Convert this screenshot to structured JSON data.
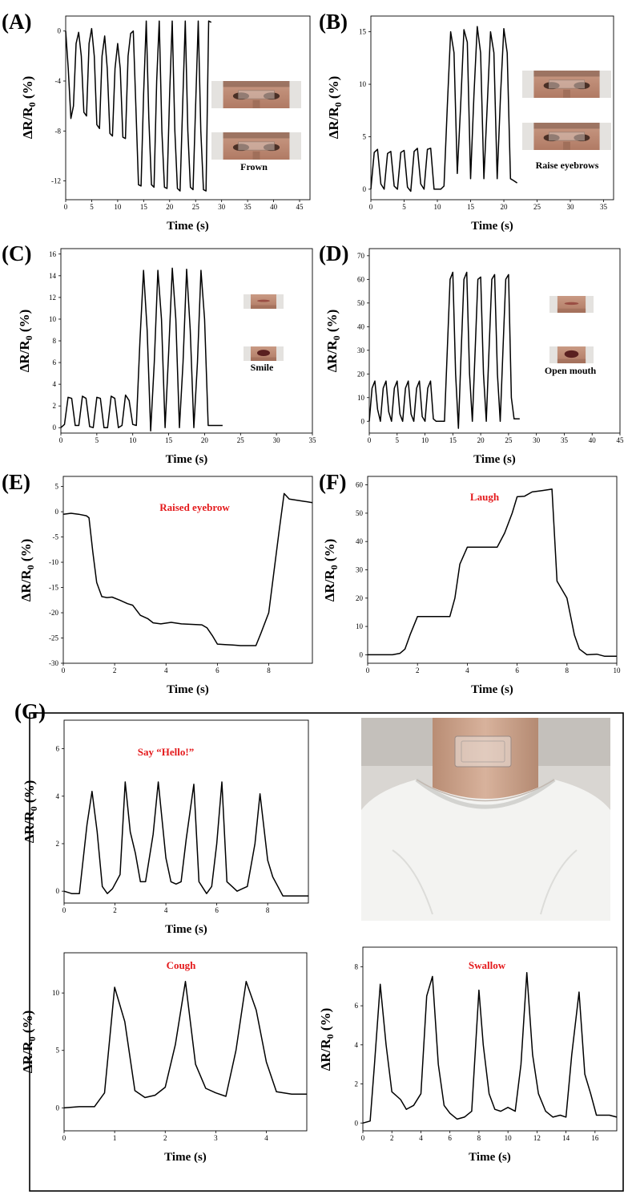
{
  "colors": {
    "line": "#000000",
    "annotation_red": "#e41a1c"
  },
  "photos": {
    "face_eyes": "face-eyes-photo",
    "face_mouth": "face-mouth-photo",
    "neck": "neck-sensor-photo"
  },
  "chart_data": [
    {
      "id": "A",
      "letter": "(A)",
      "type": "line",
      "ylabel": "ΔR/R0 (%)",
      "xlabel": "Time (s)",
      "xlim": [
        0,
        47
      ],
      "ylim": [
        -13.5,
        1.2
      ],
      "xticks": [
        0,
        5,
        10,
        15,
        20,
        25,
        30,
        35,
        40,
        45
      ],
      "yticks": [
        0,
        -4,
        -8,
        -12
      ],
      "annotation": "Frown",
      "annotation_color": "black",
      "insets": [
        "face_eyes",
        "face_eyes"
      ],
      "series": [
        {
          "x": [
            0,
            0.5,
            1,
            1.5,
            2,
            2.5,
            3,
            3.5,
            4,
            4.5,
            5,
            5.5,
            6,
            6.5,
            7,
            7.5,
            8,
            8.5,
            9,
            9.5,
            10,
            10.5,
            11,
            11.5,
            12,
            12.5,
            13,
            13.5,
            14,
            14.5,
            15,
            15.5,
            16,
            16.5,
            17,
            17.5,
            18,
            18.5,
            19,
            19.5,
            20,
            20.5,
            21,
            21.5,
            22,
            22.5,
            23,
            23.5,
            24,
            24.5,
            25,
            25.5,
            26,
            26.5,
            27,
            27.5,
            28
          ],
          "y": [
            0,
            -3,
            -7,
            -6,
            -1,
            -0.1,
            -2,
            -6.5,
            -6.8,
            -1,
            0.2,
            -2,
            -7.5,
            -7.8,
            -2,
            -0.4,
            -3,
            -8.2,
            -8.4,
            -3,
            -1,
            -3,
            -8.5,
            -8.6,
            -2,
            -0.2,
            0,
            -6,
            -12.3,
            -12.4,
            -5,
            0.8,
            -7,
            -12.3,
            -12.5,
            -4,
            0.8,
            -8,
            -12.5,
            -12.6,
            -5,
            0.8,
            -8,
            -12.6,
            -12.8,
            -6,
            0.8,
            -8,
            -12.5,
            -12.7,
            -6,
            0.8,
            -8,
            -12.7,
            -12.8,
            0.8,
            0.7
          ]
        }
      ]
    },
    {
      "id": "B",
      "letter": "(B)",
      "type": "line",
      "ylabel": "ΔR/R0 (%)",
      "xlabel": "Time (s)",
      "xlim": [
        0,
        36.5
      ],
      "ylim": [
        -1,
        16.5
      ],
      "xticks": [
        0,
        5,
        10,
        15,
        20,
        25,
        30,
        35
      ],
      "yticks": [
        0,
        5,
        10,
        15
      ],
      "annotation": "Raise eyebrows",
      "annotation_color": "black",
      "insets": [
        "face_eyes",
        "face_eyes"
      ],
      "series": [
        {
          "x": [
            0,
            0.5,
            1,
            1.5,
            2,
            2.5,
            3,
            3.5,
            4,
            4.5,
            5,
            5.5,
            6,
            6.5,
            7,
            7.5,
            8,
            8.5,
            9,
            9.5,
            10,
            10.5,
            11,
            11.5,
            12,
            12.5,
            13,
            13.5,
            14,
            14.5,
            15,
            15.5,
            16,
            16.5,
            17,
            17.5,
            18,
            18.5,
            19,
            19.5,
            20,
            20.5,
            21,
            21.5,
            22
          ],
          "y": [
            0,
            3.5,
            3.8,
            0.5,
            0,
            3.4,
            3.6,
            0.3,
            0,
            3.5,
            3.7,
            0.2,
            -0.2,
            3.6,
            3.9,
            0.5,
            0,
            3.8,
            3.9,
            0,
            0,
            0,
            0.3,
            8,
            15,
            13,
            1.5,
            8,
            15.2,
            14,
            1,
            9,
            15.5,
            13,
            1,
            8,
            15,
            13,
            1,
            9,
            15.3,
            13,
            1,
            0.8,
            0.6
          ]
        }
      ]
    },
    {
      "id": "C",
      "letter": "(C)",
      "type": "line",
      "ylabel": "ΔR/R0 (%)",
      "xlabel": "Time (s)",
      "xlim": [
        0,
        35
      ],
      "ylim": [
        -0.5,
        16.5
      ],
      "xticks": [
        0,
        5,
        10,
        15,
        20,
        25,
        30,
        35
      ],
      "yticks": [
        0,
        2,
        4,
        6,
        8,
        10,
        12,
        14,
        16
      ],
      "annotation": "Smile",
      "annotation_color": "black",
      "insets": [
        "face_mouth",
        "face_mouth"
      ],
      "series": [
        {
          "x": [
            0,
            0.5,
            1,
            1.5,
            2,
            2.5,
            3,
            3.5,
            4,
            4.5,
            5,
            5.5,
            6,
            6.5,
            7,
            7.5,
            8,
            8.5,
            9,
            9.5,
            10,
            10.5,
            11,
            11.5,
            12,
            12.5,
            13,
            13.5,
            14,
            14.5,
            15,
            15.5,
            16,
            16.5,
            17,
            17.5,
            18,
            18.5,
            19,
            19.5,
            20,
            20.5,
            21,
            21.5,
            22,
            22.5
          ],
          "y": [
            0,
            0.3,
            2.8,
            2.7,
            0.2,
            0.2,
            2.9,
            2.7,
            0.1,
            0,
            2.8,
            2.7,
            0,
            0,
            2.9,
            2.7,
            0,
            0.2,
            3,
            2.5,
            0.3,
            0.2,
            8,
            14.5,
            9,
            -0.3,
            6,
            14.5,
            10,
            0,
            7,
            14.7,
            10,
            0,
            6,
            14.6,
            9,
            0,
            6,
            14.5,
            10,
            0.2,
            0.2,
            0.2,
            0.2,
            0.2
          ]
        }
      ]
    },
    {
      "id": "D",
      "letter": "(D)",
      "type": "line",
      "ylabel": "ΔR/R0 (%)",
      "xlabel": "Time (s)",
      "xlim": [
        0,
        45
      ],
      "ylim": [
        -5,
        73
      ],
      "xticks": [
        0,
        5,
        10,
        15,
        20,
        25,
        30,
        35,
        40,
        45
      ],
      "yticks": [
        0,
        10,
        20,
        30,
        40,
        50,
        60,
        70
      ],
      "annotation": "Open mouth",
      "annotation_color": "black",
      "insets": [
        "face_mouth",
        "face_mouth"
      ],
      "series": [
        {
          "x": [
            0,
            0.5,
            1,
            1.5,
            2,
            2.5,
            3,
            3.5,
            4,
            4.5,
            5,
            5.5,
            6,
            6.5,
            7,
            7.5,
            8,
            8.5,
            9,
            9.5,
            10,
            10.5,
            11,
            11.5,
            12,
            12.5,
            13,
            13.5,
            14,
            14.5,
            15,
            15.5,
            16,
            16.5,
            17,
            17.5,
            18,
            18.5,
            19,
            19.5,
            20,
            20.5,
            21,
            21.5,
            22,
            22.5,
            23,
            23.5,
            24,
            24.5,
            25,
            25.5,
            26,
            26.5,
            27
          ],
          "y": [
            0,
            14,
            17,
            5,
            0,
            14,
            17,
            4,
            0,
            14,
            17,
            3,
            0,
            14,
            17,
            3,
            0,
            14,
            17,
            2,
            0,
            14,
            17,
            1,
            0,
            0,
            0,
            0,
            30,
            60,
            63,
            20,
            -3,
            30,
            60,
            63,
            20,
            0,
            30,
            60,
            61,
            20,
            0,
            30,
            60,
            62,
            20,
            0,
            30,
            60,
            62,
            10,
            1,
            1,
            1
          ]
        }
      ]
    },
    {
      "id": "E",
      "letter": "(E)",
      "type": "line",
      "ylabel": "ΔR/R0 (%)",
      "xlabel": "Time (s)",
      "xlim": [
        0,
        9.7
      ],
      "ylim": [
        -30,
        7
      ],
      "xticks": [
        0,
        2,
        4,
        6,
        8
      ],
      "yticks": [
        5,
        0,
        -5,
        -10,
        -15,
        -20,
        -25,
        -30
      ],
      "annotation": "Raised eyebrow",
      "annotation_color": "red",
      "series": [
        {
          "x": [
            0,
            0.3,
            0.6,
            0.9,
            1.0,
            1.15,
            1.3,
            1.5,
            1.7,
            1.9,
            2.2,
            2.5,
            2.7,
            3.0,
            3.3,
            3.5,
            3.8,
            4.2,
            4.6,
            5.0,
            5.4,
            5.6,
            5.8,
            6.0,
            6.3,
            6.6,
            6.9,
            7.2,
            7.5,
            7.7,
            8.0,
            8.2,
            8.4,
            8.6,
            8.8,
            9.2,
            9.7
          ],
          "y": [
            -0.5,
            -0.3,
            -0.5,
            -0.8,
            -1.2,
            -8,
            -14,
            -16.8,
            -17,
            -16.9,
            -17.5,
            -18.2,
            -18.5,
            -20.5,
            -21.2,
            -22,
            -22.2,
            -21.9,
            -22.2,
            -22.3,
            -22.4,
            -23,
            -24.5,
            -26.2,
            -26.3,
            -26.4,
            -26.5,
            -26.5,
            -26.5,
            -24,
            -20,
            -12,
            -4,
            3.6,
            2.5,
            2.2,
            1.8
          ]
        }
      ]
    },
    {
      "id": "F",
      "letter": "(F)",
      "type": "line",
      "ylabel": "ΔR/R0 (%)",
      "xlabel": "Time (s)",
      "xlim": [
        0,
        10
      ],
      "ylim": [
        -3,
        63
      ],
      "xticks": [
        0,
        2,
        4,
        6,
        8,
        10
      ],
      "yticks": [
        0,
        10,
        20,
        30,
        40,
        50,
        60
      ],
      "annotation": "Laugh",
      "annotation_color": "red",
      "series": [
        {
          "x": [
            0,
            0.5,
            1.0,
            1.3,
            1.5,
            1.7,
            2.0,
            2.5,
            3.0,
            3.3,
            3.5,
            3.7,
            4.0,
            4.5,
            5.0,
            5.2,
            5.5,
            5.8,
            6.0,
            6.3,
            6.6,
            7.0,
            7.4,
            7.6,
            8.0,
            8.3,
            8.5,
            8.8,
            9.2,
            9.5,
            10
          ],
          "y": [
            0,
            0,
            0,
            0.5,
            2,
            7,
            13.5,
            13.5,
            13.5,
            13.5,
            20,
            32,
            38,
            38,
            38,
            38,
            43,
            50,
            55.8,
            56,
            57.5,
            58,
            58.5,
            26,
            20,
            7,
            2,
            0,
            0.2,
            -0.5,
            -0.5
          ]
        }
      ]
    },
    {
      "id": "G1",
      "letter": "(G)",
      "type": "line",
      "ylabel": "ΔR/R0 (%)",
      "xlabel": "Time (s)",
      "xlim": [
        0,
        9.6
      ],
      "ylim": [
        -0.5,
        7.2
      ],
      "xticks": [
        0,
        2,
        4,
        6,
        8
      ],
      "yticks": [
        0,
        2,
        4,
        6
      ],
      "annotation": "Say “Hello!”",
      "annotation_color": "red",
      "series": [
        {
          "x": [
            0,
            0.3,
            0.6,
            0.9,
            1.1,
            1.3,
            1.5,
            1.7,
            1.9,
            2.2,
            2.4,
            2.6,
            2.8,
            3.0,
            3.2,
            3.5,
            3.7,
            4.0,
            4.2,
            4.4,
            4.6,
            4.8,
            5.1,
            5.3,
            5.6,
            5.8,
            6.0,
            6.2,
            6.4,
            6.6,
            6.8,
            7.0,
            7.2,
            7.5,
            7.7,
            8.0,
            8.2,
            8.4,
            8.6,
            8.8,
            9.0,
            9.3,
            9.6
          ],
          "y": [
            0,
            -0.1,
            -0.1,
            2.8,
            4.2,
            2.5,
            0.2,
            -0.1,
            0.1,
            0.7,
            4.6,
            2.5,
            1.6,
            0.4,
            0.4,
            2.4,
            4.6,
            1.4,
            0.4,
            0.3,
            0.4,
            2.2,
            4.5,
            0.4,
            -0.1,
            0.2,
            2.0,
            4.6,
            0.4,
            0.2,
            0,
            0.1,
            0.2,
            2.0,
            4.1,
            1.3,
            0.6,
            0.2,
            -0.2,
            -0.2,
            -0.2,
            -0.2,
            -0.2
          ]
        }
      ]
    },
    {
      "id": "G2",
      "letter": "",
      "type": "line",
      "ylabel": "ΔR/R0 (%)",
      "xlabel": "Time (s)",
      "xlim": [
        0,
        4.8
      ],
      "ylim": [
        -2,
        13.5
      ],
      "xticks": [
        0,
        1,
        2,
        3,
        4
      ],
      "yticks": [
        0,
        5,
        10
      ],
      "annotation": "Cough",
      "annotation_color": "red",
      "series": [
        {
          "x": [
            0,
            0.3,
            0.6,
            0.8,
            1.0,
            1.2,
            1.4,
            1.6,
            1.8,
            2.0,
            2.2,
            2.4,
            2.6,
            2.8,
            3.0,
            3.2,
            3.4,
            3.6,
            3.8,
            4.0,
            4.2,
            4.5,
            4.8
          ],
          "y": [
            0,
            0.1,
            0.1,
            1.3,
            10.5,
            7.5,
            1.5,
            0.9,
            1.1,
            1.8,
            5.5,
            11,
            3.8,
            1.7,
            1.3,
            1,
            5,
            11,
            8.5,
            4,
            1.4,
            1.2,
            1.2
          ]
        }
      ]
    },
    {
      "id": "G3",
      "letter": "",
      "type": "line",
      "ylabel": "ΔR/R0 (%)",
      "xlabel": "Time (s)",
      "xlim": [
        0,
        17.5
      ],
      "ylim": [
        -0.4,
        9
      ],
      "xticks": [
        0,
        2,
        4,
        6,
        8,
        10,
        12,
        14,
        16
      ],
      "yticks": [
        0,
        2,
        4,
        6,
        8
      ],
      "annotation": "Swallow",
      "annotation_color": "red",
      "series": [
        {
          "x": [
            0,
            0.5,
            0.8,
            1.2,
            1.6,
            2.0,
            2.6,
            3.0,
            3.5,
            4.0,
            4.4,
            4.8,
            5.2,
            5.6,
            6.0,
            6.5,
            7.0,
            7.5,
            8.0,
            8.3,
            8.7,
            9.1,
            9.5,
            10.0,
            10.5,
            10.9,
            11.3,
            11.7,
            12.1,
            12.6,
            13.1,
            13.6,
            14.0,
            14.4,
            14.9,
            15.3,
            15.7,
            16.1,
            16.6,
            17.0,
            17.5
          ],
          "y": [
            0,
            0.1,
            3,
            7.1,
            4,
            1.6,
            1.2,
            0.7,
            0.9,
            1.5,
            6.5,
            7.5,
            3,
            0.9,
            0.5,
            0.2,
            0.3,
            0.6,
            6.8,
            4,
            1.5,
            0.7,
            0.6,
            0.8,
            0.6,
            3,
            7.7,
            3.5,
            1.5,
            0.6,
            0.3,
            0.4,
            0.3,
            3.5,
            6.7,
            2.5,
            1.5,
            0.4,
            0.4,
            0.4,
            0.3
          ]
        }
      ]
    }
  ]
}
